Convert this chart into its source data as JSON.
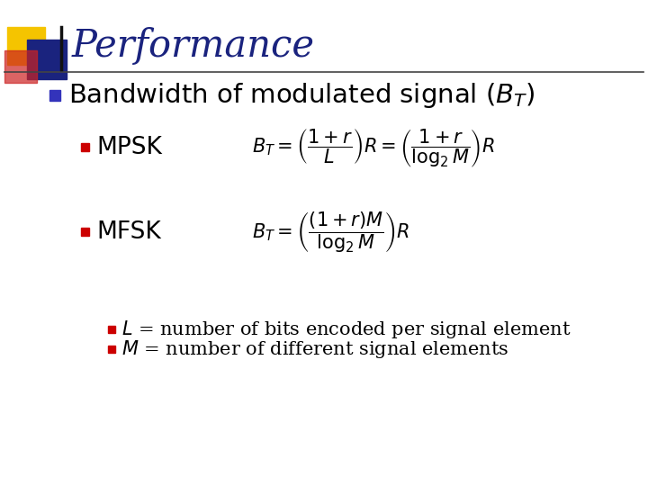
{
  "title": "Performance",
  "title_color": "#1a237e",
  "title_fontsize": 30,
  "bg_color": "#ffffff",
  "bullet_color": "#3333bb",
  "sub_bullet_color": "#cc0000",
  "mpsk_label": "MPSK",
  "mfsk_label": "MFSK",
  "label_fontsize": 19,
  "formula_fontsize": 15,
  "note_fontsize": 15,
  "bullet_fontsize": 21,
  "yellow_color": "#f5c400",
  "red_color": "#cc2222",
  "blue_color": "#1a237e",
  "line_color": "#444444"
}
